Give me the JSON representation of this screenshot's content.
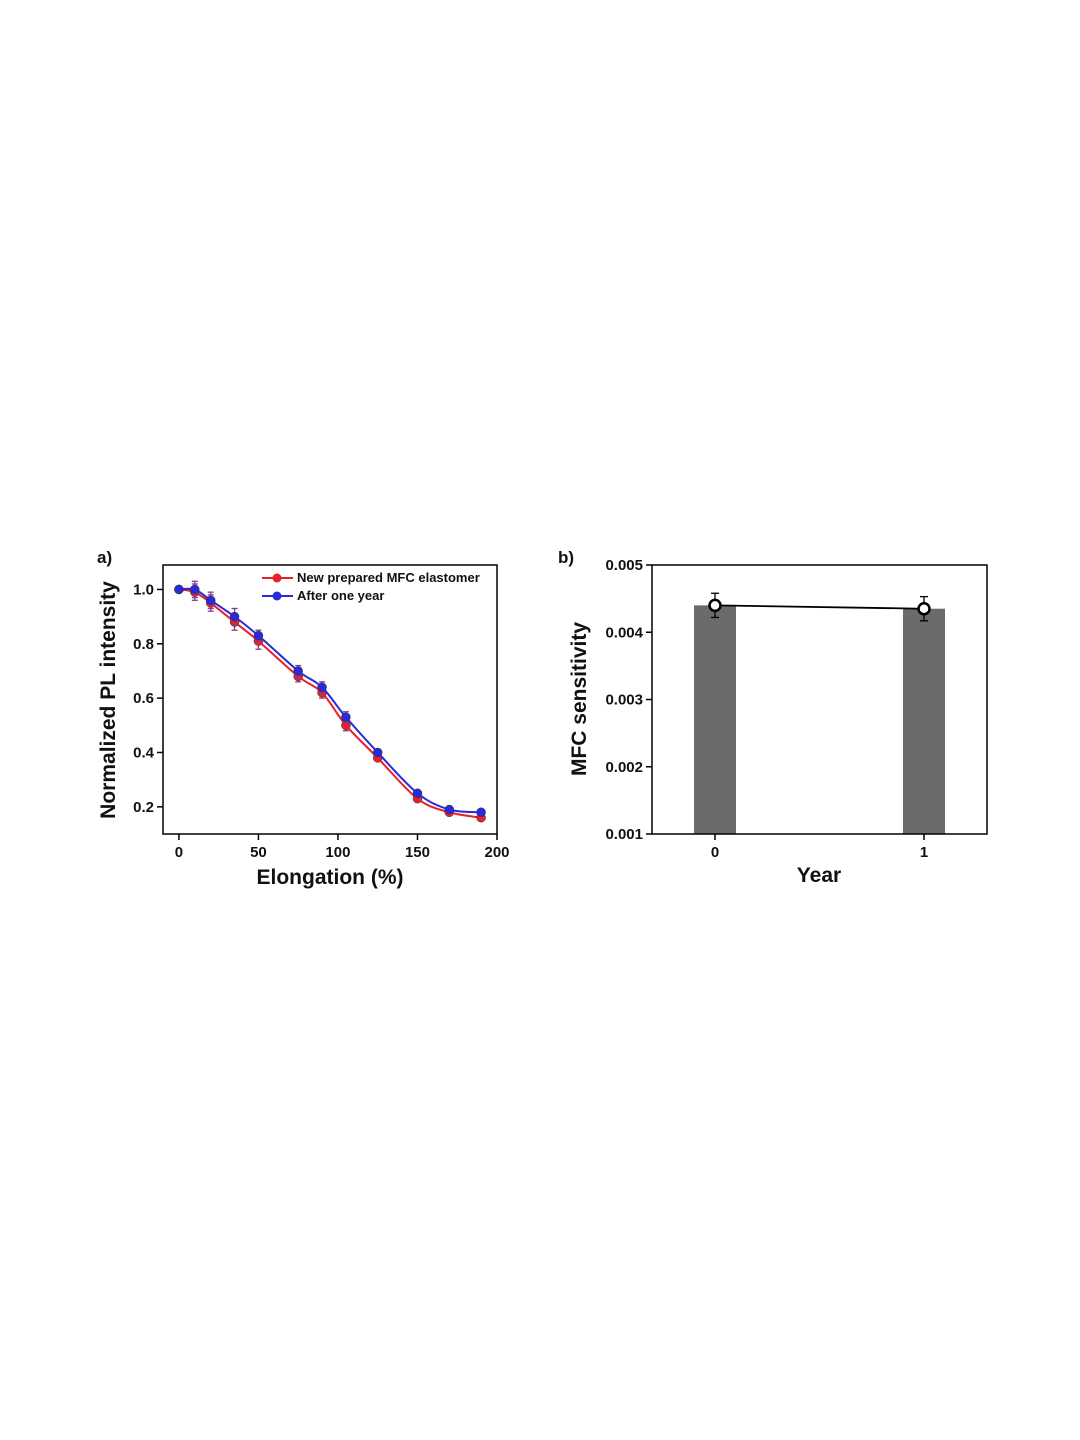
{
  "chart_data": [
    {
      "type": "line",
      "panel_label": "a)",
      "xlabel": "Elongation (%)",
      "ylabel": "Normalized PL intensity",
      "xlim": [
        -10,
        200
      ],
      "ylim": [
        0.1,
        1.09
      ],
      "xticks": [
        "0",
        "50",
        "100",
        "150",
        "200"
      ],
      "yticks": [
        "0.2",
        "0.4",
        "0.6",
        "0.8",
        "1.0"
      ],
      "legend_position": "top-right",
      "x": [
        0,
        10,
        20,
        35,
        50,
        75,
        90,
        105,
        125,
        150,
        170,
        190
      ],
      "series": [
        {
          "name": "New prepared MFC elastomer",
          "color": "#e8202a",
          "values": [
            1.0,
            0.99,
            0.95,
            0.88,
            0.81,
            0.68,
            0.62,
            0.5,
            0.38,
            0.23,
            0.18,
            0.16
          ],
          "errors": [
            0.01,
            0.03,
            0.03,
            0.03,
            0.03,
            0.02,
            0.02,
            0.02,
            0.01,
            0.01,
            0.01,
            0.01
          ]
        },
        {
          "name": "After one year",
          "color": "#2a2ad8",
          "values": [
            1.0,
            1.0,
            0.96,
            0.9,
            0.83,
            0.7,
            0.64,
            0.53,
            0.4,
            0.25,
            0.19,
            0.18
          ],
          "errors": [
            0.01,
            0.03,
            0.03,
            0.03,
            0.02,
            0.02,
            0.02,
            0.02,
            0.01,
            0.01,
            0.01,
            0.01
          ]
        }
      ]
    },
    {
      "type": "bar",
      "panel_label": "b)",
      "xlabel": "Year",
      "ylabel": "MFC sensitivity",
      "categories": [
        "0",
        "1"
      ],
      "ylim": [
        0.001,
        0.005
      ],
      "yticks": [
        "0.001",
        "0.002",
        "0.003",
        "0.004",
        "0.005"
      ],
      "bar_color": "#6b6b6b",
      "line_color": "#000000",
      "values": [
        0.0044,
        0.00435
      ],
      "errors": [
        0.00018,
        0.00018
      ]
    }
  ]
}
